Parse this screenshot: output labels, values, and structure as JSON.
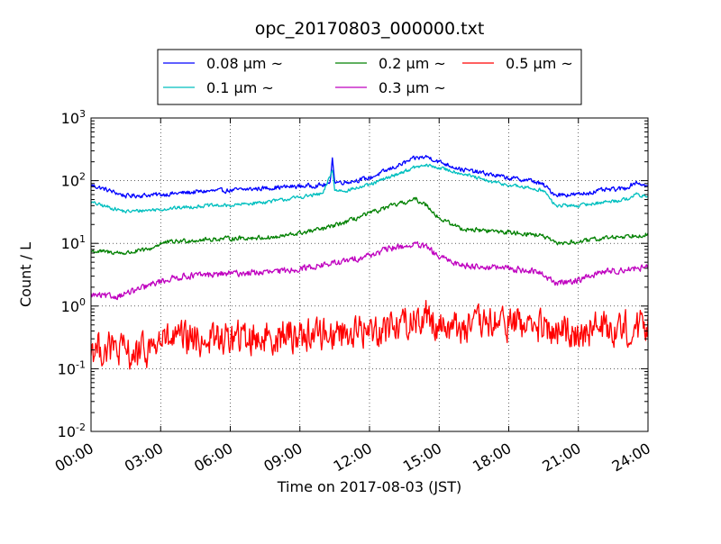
{
  "chart_data": {
    "type": "line",
    "title": "opc_20170803_000000.txt",
    "xlabel": "Time on 2017-08-03 (JST)",
    "ylabel": "Count / L",
    "yscale": "log",
    "xlim_hours": [
      0,
      24
    ],
    "ylim": [
      0.01,
      1000
    ],
    "grid": true,
    "legend_position": "top-center-outside",
    "x_tick_labels": [
      "00:00",
      "03:00",
      "06:00",
      "09:00",
      "12:00",
      "15:00",
      "18:00",
      "21:00",
      "24:00"
    ],
    "y_tick_labels": [
      {
        "base": "10",
        "exp": "-2",
        "value": 0.01
      },
      {
        "base": "10",
        "exp": "-1",
        "value": 0.1
      },
      {
        "base": "10",
        "exp": "0",
        "value": 1
      },
      {
        "base": "10",
        "exp": "1",
        "value": 10
      },
      {
        "base": "10",
        "exp": "2",
        "value": 100
      },
      {
        "base": "10",
        "exp": "3",
        "value": 1000
      }
    ],
    "series": [
      {
        "name": "0.08 μm ~",
        "color": "#0000ff",
        "noise": 0.05,
        "x_hours": [
          0,
          0.5,
          1.5,
          3,
          5,
          6,
          8,
          10,
          10.3,
          10.4,
          10.5,
          11,
          12,
          13,
          14,
          14.5,
          15,
          16,
          17,
          18,
          19,
          19.5,
          20,
          21,
          22,
          23,
          23.5,
          24
        ],
        "values": [
          85,
          75,
          57,
          60,
          68,
          70,
          78,
          85,
          88,
          250,
          95,
          95,
          110,
          160,
          230,
          240,
          200,
          150,
          130,
          110,
          100,
          85,
          60,
          60,
          70,
          75,
          95,
          80
        ]
      },
      {
        "name": "0.1 μm ~",
        "color": "#00bfbf",
        "noise": 0.04,
        "x_hours": [
          0,
          0.5,
          1.5,
          3,
          5,
          6,
          8,
          10,
          10.4,
          10.5,
          11,
          12,
          13,
          14,
          14.5,
          15,
          16,
          17,
          18,
          19,
          19.5,
          20,
          21,
          22,
          23,
          23.5,
          24
        ],
        "values": [
          45,
          40,
          32,
          35,
          40,
          40,
          48,
          62,
          150,
          70,
          70,
          85,
          120,
          165,
          175,
          160,
          130,
          100,
          85,
          75,
          70,
          40,
          40,
          45,
          50,
          60,
          55
        ]
      },
      {
        "name": "0.2 μm ~",
        "color": "#008000",
        "noise": 0.05,
        "x_hours": [
          0,
          1.5,
          2.5,
          3,
          4,
          6,
          8,
          10,
          11,
          12,
          13,
          14,
          14.5,
          15,
          16,
          17,
          18,
          19,
          19.5,
          20,
          21,
          22,
          23,
          24
        ],
        "values": [
          7.5,
          7,
          8,
          10,
          11,
          12,
          12.5,
          17,
          22,
          30,
          40,
          50,
          40,
          25,
          17,
          16,
          15,
          14,
          13,
          10,
          10.5,
          12,
          13,
          14
        ]
      },
      {
        "name": "0.3 μm ~",
        "color": "#bf00bf",
        "noise": 0.07,
        "x_hours": [
          0,
          1,
          2,
          3,
          4,
          6,
          8,
          10,
          11,
          12,
          13,
          14,
          14.5,
          15,
          16,
          17,
          18,
          19,
          19.5,
          20,
          21,
          22,
          23,
          24
        ],
        "values": [
          1.5,
          1.4,
          1.8,
          2.5,
          3.0,
          3.3,
          3.5,
          4.5,
          5.2,
          6.5,
          8.5,
          9.5,
          8.5,
          6.0,
          4.5,
          4.2,
          4.0,
          3.6,
          3.2,
          2.3,
          2.6,
          3.5,
          3.8,
          4.2
        ]
      },
      {
        "name": "0.5 μm ~",
        "color": "#ff0000",
        "noise": 0.38,
        "x_hours": [
          0,
          1,
          2,
          3,
          6,
          9,
          12,
          13,
          14,
          14.5,
          15,
          16,
          18,
          19,
          20,
          21,
          22,
          24
        ],
        "values": [
          0.22,
          0.2,
          0.16,
          0.28,
          0.3,
          0.35,
          0.4,
          0.5,
          0.6,
          0.7,
          0.5,
          0.45,
          0.55,
          0.5,
          0.35,
          0.4,
          0.45,
          0.45
        ]
      }
    ]
  }
}
